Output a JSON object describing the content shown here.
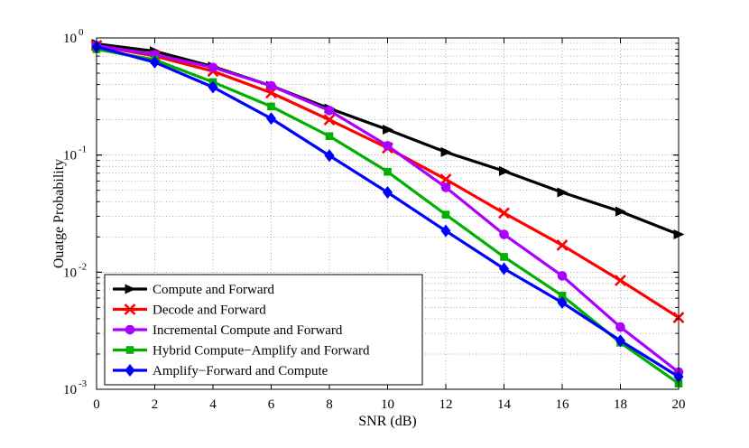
{
  "chart_data": {
    "type": "line",
    "xlabel": "SNR (dB)",
    "ylabel": "Ouatge Probability",
    "xlim": [
      0,
      20
    ],
    "ylim": [
      0.001,
      1
    ],
    "yscale": "log",
    "grid": true,
    "legend_position": "bottom-left",
    "x_ticks": [
      0,
      2,
      4,
      6,
      8,
      10,
      12,
      14,
      16,
      18,
      20
    ],
    "x_tick_labels": [
      "0",
      "2",
      "4",
      "6",
      "8",
      "10",
      "12",
      "14",
      "16",
      "18",
      "20"
    ],
    "y_ticks": [
      {
        "value": 1,
        "base": "10",
        "exp": "0"
      },
      {
        "value": 0.1,
        "base": "10",
        "exp": "-1"
      },
      {
        "value": 0.01,
        "base": "10",
        "exp": "-2"
      },
      {
        "value": 0.001,
        "base": "10",
        "exp": "-3"
      }
    ],
    "x": [
      0,
      2,
      4,
      6,
      8,
      10,
      12,
      14,
      16,
      18,
      20
    ],
    "series": [
      {
        "name": "Compute and Forward",
        "color": "#000000",
        "marker": "triangle-right",
        "values": [
          0.89,
          0.77,
          0.57,
          0.39,
          0.25,
          0.165,
          0.106,
          0.073,
          0.048,
          0.033,
          0.021
        ]
      },
      {
        "name": "Decode and Forward",
        "color": "#ff0000",
        "marker": "x",
        "values": [
          0.86,
          0.7,
          0.52,
          0.34,
          0.2,
          0.115,
          0.062,
          0.032,
          0.017,
          0.0085,
          0.0041
        ]
      },
      {
        "name": "Incremental Compute and Forward",
        "color": "#aa00ff",
        "marker": "circle",
        "values": [
          0.86,
          0.72,
          0.56,
          0.39,
          0.24,
          0.12,
          0.053,
          0.021,
          0.0093,
          0.0034,
          0.0014
        ]
      },
      {
        "name": "Hybrid Compute−Amplify and Forward",
        "color": "#00b000",
        "marker": "square",
        "values": [
          0.8,
          0.65,
          0.42,
          0.26,
          0.145,
          0.072,
          0.031,
          0.0135,
          0.0063,
          0.0025,
          0.00112
        ]
      },
      {
        "name": "Amplify−Forward and Compute",
        "color": "#0000ff",
        "marker": "diamond",
        "values": [
          0.84,
          0.62,
          0.38,
          0.205,
          0.099,
          0.048,
          0.0225,
          0.0107,
          0.0055,
          0.0026,
          0.00128
        ]
      }
    ]
  }
}
